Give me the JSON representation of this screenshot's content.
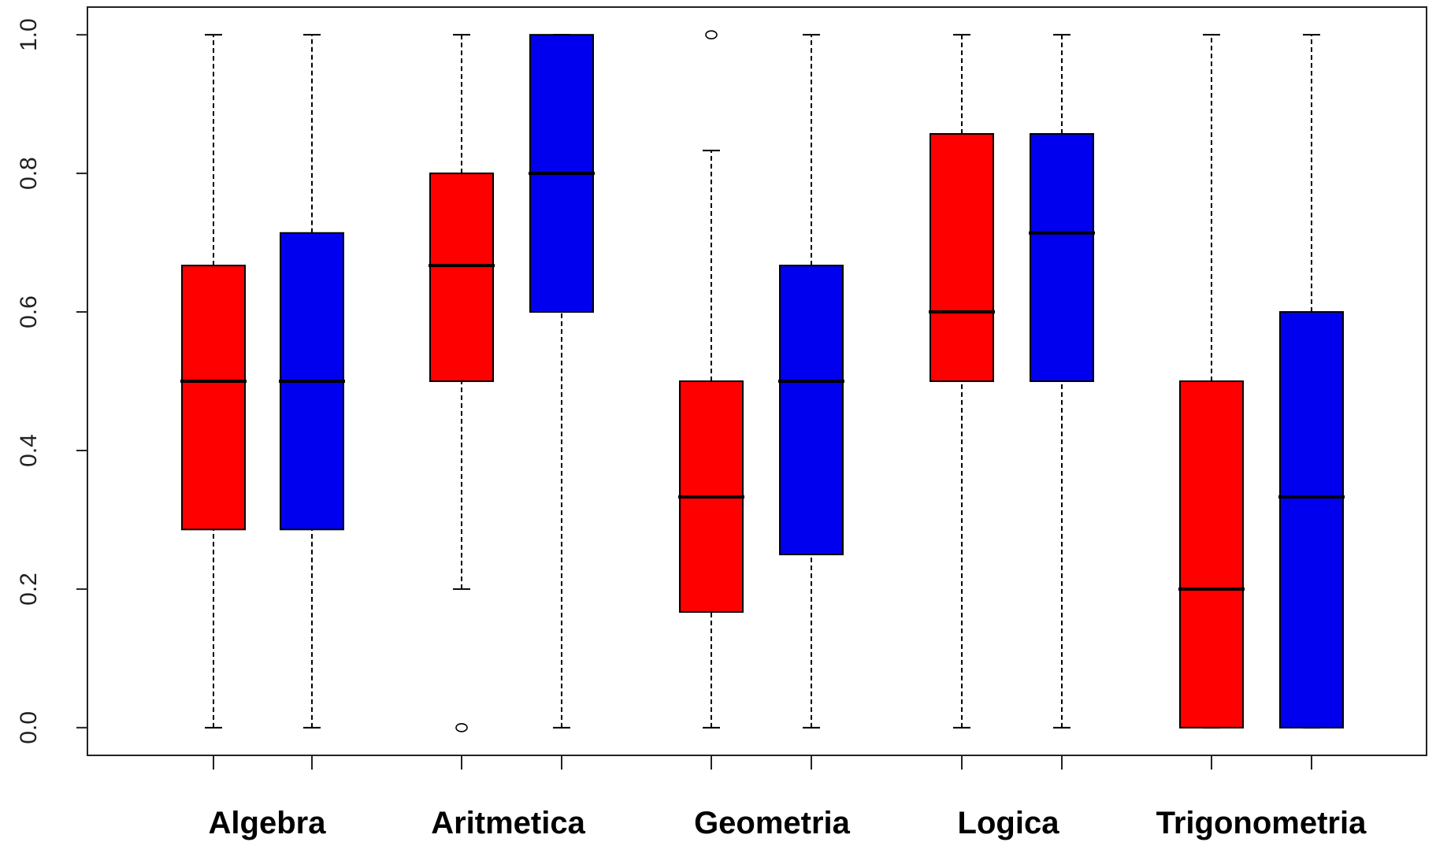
{
  "chart_data": {
    "type": "boxplot",
    "title": "",
    "xlabel": "",
    "ylabel": "",
    "ylim": [
      -0.04,
      1.04
    ],
    "yticks": [
      "0.0",
      "0.2",
      "0.4",
      "0.6",
      "0.8",
      "1.0"
    ],
    "ytick_values": [
      0.0,
      0.2,
      0.4,
      0.6,
      0.8,
      1.0
    ],
    "categories": [
      "Algebra",
      "Aritmetica",
      "Geometria",
      "Logica",
      "Trigonometria"
    ],
    "grid": false,
    "legend": "none",
    "series_colors": [
      "#ff0000",
      "#0000ee"
    ],
    "boxes": [
      {
        "category": "Algebra",
        "group": 0,
        "min": 0.0,
        "q1": 0.286,
        "median": 0.5,
        "q3": 0.667,
        "max": 1.0,
        "outliers": []
      },
      {
        "category": "Algebra",
        "group": 1,
        "min": 0.0,
        "q1": 0.286,
        "median": 0.5,
        "q3": 0.714,
        "max": 1.0,
        "outliers": []
      },
      {
        "category": "Aritmetica",
        "group": 0,
        "min": 0.2,
        "q1": 0.5,
        "median": 0.667,
        "q3": 0.8,
        "max": 1.0,
        "outliers": [
          0.0
        ]
      },
      {
        "category": "Aritmetica",
        "group": 1,
        "min": 0.0,
        "q1": 0.6,
        "median": 0.8,
        "q3": 1.0,
        "max": 1.0,
        "outliers": []
      },
      {
        "category": "Geometria",
        "group": 0,
        "min": 0.0,
        "q1": 0.167,
        "median": 0.333,
        "q3": 0.5,
        "max": 0.833,
        "outliers": [
          1.0
        ]
      },
      {
        "category": "Geometria",
        "group": 1,
        "min": 0.0,
        "q1": 0.25,
        "median": 0.5,
        "q3": 0.667,
        "max": 1.0,
        "outliers": []
      },
      {
        "category": "Logica",
        "group": 0,
        "min": 0.0,
        "q1": 0.5,
        "median": 0.6,
        "q3": 0.857,
        "max": 1.0,
        "outliers": []
      },
      {
        "category": "Logica",
        "group": 1,
        "min": 0.0,
        "q1": 0.5,
        "median": 0.714,
        "q3": 0.857,
        "max": 1.0,
        "outliers": []
      },
      {
        "category": "Trigonometria",
        "group": 0,
        "min": 0.0,
        "q1": 0.0,
        "median": 0.2,
        "q3": 0.5,
        "max": 1.0,
        "outliers": []
      },
      {
        "category": "Trigonometria",
        "group": 1,
        "min": 0.0,
        "q1": 0.0,
        "median": 0.333,
        "q3": 0.6,
        "max": 1.0,
        "outliers": []
      }
    ]
  }
}
